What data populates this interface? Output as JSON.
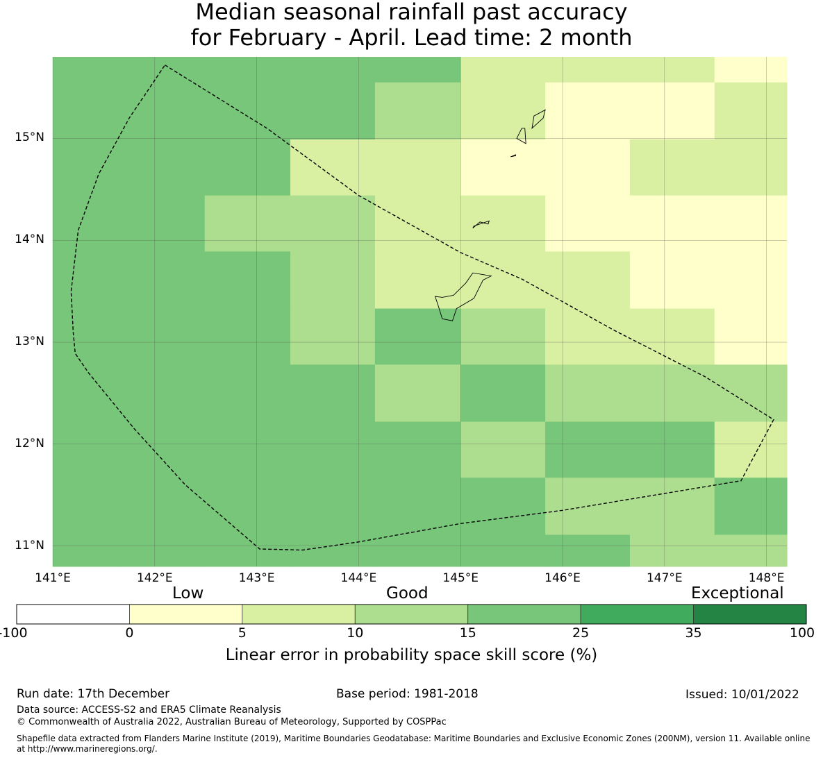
{
  "title_lines": [
    "Median seasonal rainfall past accuracy",
    "for February - April. Lead time: 2 month"
  ],
  "map": {
    "lon_range": [
      141.0,
      148.2
    ],
    "lat_range": [
      10.8,
      15.8
    ],
    "lon_ticks": [
      {
        "v": 141,
        "label": "141°E"
      },
      {
        "v": 142,
        "label": "142°E"
      },
      {
        "v": 143,
        "label": "143°E"
      },
      {
        "v": 144,
        "label": "144°E"
      },
      {
        "v": 145,
        "label": "145°E"
      },
      {
        "v": 146,
        "label": "146°E"
      },
      {
        "v": 147,
        "label": "147°E"
      },
      {
        "v": 148,
        "label": "148°E"
      }
    ],
    "lat_ticks": [
      {
        "v": 11,
        "label": "11°N"
      },
      {
        "v": 12,
        "label": "12°N"
      },
      {
        "v": 13,
        "label": "13°N"
      },
      {
        "v": 14,
        "label": "14°N"
      },
      {
        "v": 15,
        "label": "15°N"
      }
    ],
    "grid_lon_edges": [
      141.0,
      141.66,
      142.49,
      143.33,
      144.16,
      145.0,
      145.83,
      146.66,
      147.49,
      148.2
    ],
    "grid_lat_edges": [
      15.8,
      15.55,
      14.99,
      14.44,
      13.89,
      13.33,
      12.78,
      12.22,
      11.67,
      11.11,
      10.8
    ],
    "grid_colors": [
      [
        "c4",
        "c4",
        "c4",
        "c3",
        "c3",
        "c1",
        "c1",
        "c1",
        "c0"
      ],
      [
        "c4",
        "c4",
        "c4",
        "c3",
        "c2",
        "c1",
        "c0",
        "c0",
        "c1"
      ],
      [
        "c3",
        "c4",
        "c3",
        "c1",
        "c1",
        "c0",
        "c0",
        "c1",
        "c1"
      ],
      [
        "c4",
        "c4",
        "c2",
        "c2",
        "c1",
        "c1",
        "c0",
        "c0",
        "c0"
      ],
      [
        "c4",
        "c4",
        "c3",
        "c2",
        "c1",
        "c1",
        "c1",
        "c0",
        "c0"
      ],
      [
        "c3",
        "c4",
        "c4",
        "c2",
        "c3",
        "c2",
        "c1",
        "c1",
        "c0"
      ],
      [
        "c4",
        "c4",
        "c4",
        "c3",
        "c2",
        "c3",
        "c2",
        "c2",
        "c2"
      ],
      [
        "c4",
        "c3",
        "c4",
        "c4",
        "c3",
        "c2",
        "c3",
        "c3",
        "c1"
      ],
      [
        "c4",
        "c3",
        "c3",
        "c3",
        "c3",
        "c3",
        "c2",
        "c2",
        "c3"
      ],
      [
        "c3",
        "c3",
        "c4",
        "c4",
        "c3",
        "c4",
        "c3",
        "c2",
        "c2"
      ]
    ],
    "boundary": [
      [
        142.1,
        15.72
      ],
      [
        143.1,
        15.1
      ],
      [
        144.0,
        14.44
      ],
      [
        145.0,
        13.88
      ],
      [
        145.6,
        13.62
      ],
      [
        146.5,
        13.12
      ],
      [
        147.4,
        12.66
      ],
      [
        148.07,
        12.24
      ],
      [
        147.75,
        11.64
      ],
      [
        146.0,
        11.35
      ],
      [
        145.0,
        11.22
      ],
      [
        144.0,
        11.04
      ],
      [
        143.45,
        10.96
      ],
      [
        143.03,
        10.97
      ],
      [
        142.3,
        11.6
      ],
      [
        141.8,
        12.15
      ],
      [
        141.35,
        12.7
      ],
      [
        141.22,
        12.89
      ],
      [
        141.2,
        13.1
      ],
      [
        141.18,
        13.5
      ],
      [
        141.25,
        14.1
      ],
      [
        141.45,
        14.65
      ],
      [
        141.75,
        15.2
      ],
      [
        142.1,
        15.72
      ]
    ],
    "islands": [
      [
        [
          145.3,
          13.65
        ],
        [
          145.22,
          13.61
        ],
        [
          145.13,
          13.43
        ],
        [
          144.96,
          13.33
        ],
        [
          144.92,
          13.21
        ],
        [
          144.82,
          13.23
        ],
        [
          144.78,
          13.36
        ],
        [
          144.75,
          13.45
        ],
        [
          144.82,
          13.44
        ],
        [
          144.93,
          13.46
        ],
        [
          145.05,
          13.58
        ],
        [
          145.12,
          13.68
        ],
        [
          145.3,
          13.65
        ]
      ],
      [
        [
          145.28,
          14.19
        ],
        [
          145.13,
          14.14
        ],
        [
          145.12,
          14.12
        ],
        [
          145.19,
          14.18
        ],
        [
          145.27,
          14.16
        ],
        [
          145.28,
          14.19
        ]
      ],
      [
        [
          145.83,
          15.28
        ],
        [
          145.72,
          15.22
        ],
        [
          145.7,
          15.1
        ],
        [
          145.81,
          15.2
        ],
        [
          145.83,
          15.28
        ]
      ],
      [
        [
          145.6,
          15.1
        ],
        [
          145.55,
          15.0
        ],
        [
          145.64,
          14.95
        ],
        [
          145.63,
          15.1
        ],
        [
          145.6,
          15.1
        ]
      ],
      [
        [
          145.54,
          14.84
        ],
        [
          145.49,
          14.82
        ],
        [
          145.54,
          14.83
        ],
        [
          145.54,
          14.84
        ]
      ]
    ]
  },
  "legend": {
    "category_labels": [
      "Low",
      "Good",
      "Exceptional"
    ],
    "colors": {
      "c0": "#ffffcc",
      "c1": "#d9f0a3",
      "c2": "#addd8e",
      "c3": "#78c679",
      "c4": "#78c679",
      "c5": "#41ab5d",
      "c6": "#238443",
      "neg": "#ffffff"
    },
    "bins": [
      "neg",
      "c0",
      "c1",
      "c2",
      "c3",
      "c5",
      "c6"
    ],
    "tick_labels": [
      "-100",
      "0",
      "5",
      "10",
      "15",
      "25",
      "35",
      "100"
    ],
    "caption": "Linear error in probability space skill score (%)"
  },
  "footer": {
    "run_date": "Run date: 17th December",
    "base_period": "Base period: 1981-2018",
    "issued": "Issued: 10/01/2022",
    "data_source": "Data source: ACCESS-S2 and ERA5 Climate Reanalysis",
    "copyright": "© Commonwealth of Australia 2022, Australian Bureau of Meteorology, Supported by COSPPac",
    "shapefile_line1": "Shapefile data extracted from Flanders Marine Institute (2019), Maritime Boundaries Geodatabase: Maritime Boundaries and Exclusive Economic Zones (200NM), version 11. Available online",
    "shapefile_line2": "at http://www.marineregions.org/."
  }
}
